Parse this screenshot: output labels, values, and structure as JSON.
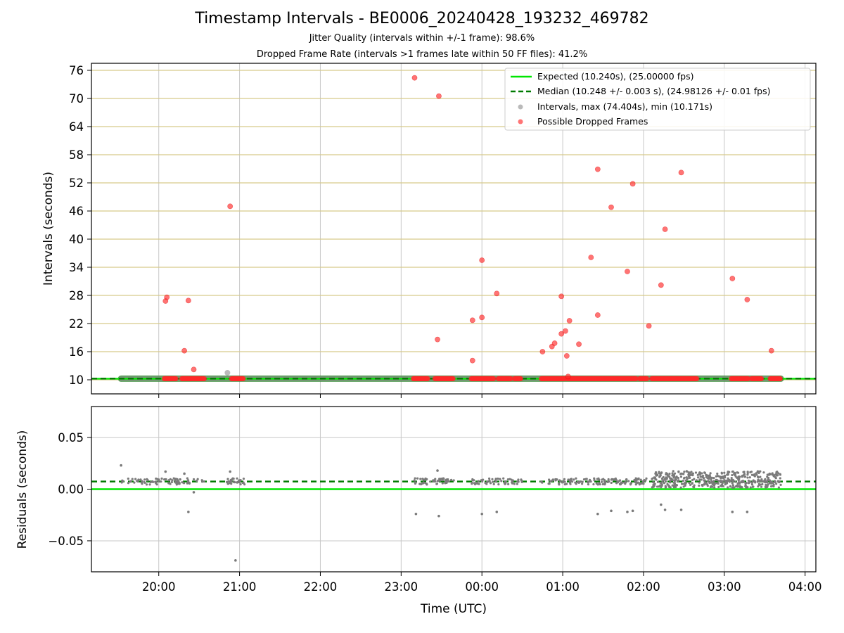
{
  "title": "Timestamp Intervals - BE0006_20240428_193232_469782",
  "subtitle1": "Jitter Quality (intervals within +/-1 frame): 98.6%",
  "subtitle2": "Dropped Frame Rate (intervals >1 frames late within 50 FF files): 41.2%",
  "colors": {
    "expected": "#00e600",
    "median": "#007a00",
    "intervals": "#8c8c8c",
    "dropped": "#ff2a2a",
    "hgrid_top": "#d6c98a",
    "grid": "#c8c8c8"
  },
  "chart_data": [
    {
      "type": "scatter",
      "ylabel": "Intervals (seconds)",
      "xlim": [
        "19:10",
        "04:08"
      ],
      "ylim": [
        7,
        77.5
      ],
      "yticks": [
        10,
        16,
        22,
        28,
        34,
        40,
        46,
        52,
        58,
        64,
        70,
        76
      ],
      "grid": true,
      "legend_position": "upper right",
      "legend": [
        "Expected (10.240s), (25.00000 fps)",
        "Median (10.248 +/- 0.003 s), (24.98126 +/- 0.01 fps)",
        "Intervals, max (74.404s), min (10.171s)",
        "Possible Dropped Frames"
      ],
      "expected_line": 10.24,
      "median_line": 10.248,
      "intervals_segment": {
        "x_start": "19:32",
        "x_end": "03:42",
        "y": 10.24
      },
      "gray_outliers": [
        {
          "x": "20:51",
          "y": 11.5
        }
      ],
      "dropped_runs": [
        {
          "x_start": "20:04",
          "x_end": "20:13"
        },
        {
          "x_start": "20:17",
          "x_end": "20:34"
        },
        {
          "x_start": "20:54",
          "x_end": "21:03"
        },
        {
          "x_start": "23:09",
          "x_end": "23:20"
        },
        {
          "x_start": "23:25",
          "x_end": "23:39"
        },
        {
          "x_start": "23:52",
          "x_end": "00:09"
        },
        {
          "x_start": "00:12",
          "x_end": "00:22"
        },
        {
          "x_start": "00:24",
          "x_end": "00:29"
        },
        {
          "x_start": "00:44",
          "x_end": "01:02"
        },
        {
          "x_start": "01:03",
          "x_end": "01:55"
        },
        {
          "x_start": "01:57",
          "x_end": "02:03"
        },
        {
          "x_start": "02:06",
          "x_end": "02:40"
        },
        {
          "x_start": "03:05",
          "x_end": "03:18"
        },
        {
          "x_start": "03:20",
          "x_end": "03:28"
        },
        {
          "x_start": "03:34",
          "x_end": "03:42"
        }
      ],
      "dropped_points": [
        {
          "x": "20:05",
          "y": 26.8
        },
        {
          "x": "20:06",
          "y": 27.6
        },
        {
          "x": "20:22",
          "y": 26.9
        },
        {
          "x": "20:19",
          "y": 16.2
        },
        {
          "x": "20:26",
          "y": 12.2
        },
        {
          "x": "20:53",
          "y": 47.0
        },
        {
          "x": "23:10",
          "y": 74.4
        },
        {
          "x": "23:28",
          "y": 70.5
        },
        {
          "x": "23:27",
          "y": 18.6
        },
        {
          "x": "23:53",
          "y": 22.7
        },
        {
          "x": "23:53",
          "y": 14.1
        },
        {
          "x": "00:00",
          "y": 23.3
        },
        {
          "x": "00:00",
          "y": 35.5
        },
        {
          "x": "00:11",
          "y": 28.4
        },
        {
          "x": "00:45",
          "y": 16.0
        },
        {
          "x": "00:52",
          "y": 17.1
        },
        {
          "x": "00:54",
          "y": 17.8
        },
        {
          "x": "00:59",
          "y": 19.8
        },
        {
          "x": "00:59",
          "y": 27.8
        },
        {
          "x": "01:02",
          "y": 20.4
        },
        {
          "x": "01:03",
          "y": 15.1
        },
        {
          "x": "01:04",
          "y": 10.7
        },
        {
          "x": "01:05",
          "y": 22.6
        },
        {
          "x": "01:12",
          "y": 17.6
        },
        {
          "x": "01:21",
          "y": 36.1
        },
        {
          "x": "01:26",
          "y": 23.8
        },
        {
          "x": "01:26",
          "y": 54.9
        },
        {
          "x": "01:36",
          "y": 46.8
        },
        {
          "x": "01:48",
          "y": 33.1
        },
        {
          "x": "01:52",
          "y": 51.8
        },
        {
          "x": "02:04",
          "y": 21.5
        },
        {
          "x": "02:13",
          "y": 30.2
        },
        {
          "x": "02:16",
          "y": 42.1
        },
        {
          "x": "02:28",
          "y": 54.2
        },
        {
          "x": "03:06",
          "y": 31.6
        },
        {
          "x": "03:17",
          "y": 27.1
        },
        {
          "x": "03:35",
          "y": 16.2
        }
      ]
    },
    {
      "type": "scatter",
      "xlabel": "Time (UTC)",
      "ylabel": "Residuals (seconds)",
      "xlim": [
        "19:10",
        "04:08"
      ],
      "xticks": [
        "20:00",
        "21:00",
        "22:00",
        "23:00",
        "00:00",
        "01:00",
        "02:00",
        "03:00",
        "04:00"
      ],
      "ylim": [
        -0.08,
        0.08
      ],
      "yticks": [
        0.05,
        0.0,
        -0.05
      ],
      "ytick_labels": [
        "0.05",
        "0.00",
        "−0.05"
      ],
      "expected_line": 0.0,
      "median_line": 0.0074,
      "grid": true,
      "clusters": [
        {
          "x_start": "19:32",
          "x_end": "20:34",
          "y_center": 0.0075,
          "spread": 0.003,
          "count": 80
        },
        {
          "x_start": "20:50",
          "x_end": "21:04",
          "y_center": 0.0075,
          "spread": 0.003,
          "count": 30
        },
        {
          "x_start": "23:09",
          "x_end": "23:40",
          "y_center": 0.0075,
          "spread": 0.003,
          "count": 50
        },
        {
          "x_start": "23:52",
          "x_end": "00:30",
          "y_center": 0.0075,
          "spread": 0.003,
          "count": 55
        },
        {
          "x_start": "00:44",
          "x_end": "02:03",
          "y_center": 0.0075,
          "spread": 0.003,
          "count": 140
        },
        {
          "x_start": "02:06",
          "x_end": "03:42",
          "y_center": 0.0095,
          "spread": 0.008,
          "count": 460
        }
      ],
      "outliers": [
        {
          "x": "19:32",
          "y": 0.023
        },
        {
          "x": "20:05",
          "y": 0.017
        },
        {
          "x": "20:19",
          "y": 0.015
        },
        {
          "x": "20:22",
          "y": -0.022
        },
        {
          "x": "20:26",
          "y": -0.003
        },
        {
          "x": "20:53",
          "y": 0.017
        },
        {
          "x": "20:57",
          "y": -0.069
        },
        {
          "x": "23:11",
          "y": -0.024
        },
        {
          "x": "23:28",
          "y": -0.026
        },
        {
          "x": "23:27",
          "y": 0.018
        },
        {
          "x": "00:00",
          "y": -0.024
        },
        {
          "x": "00:11",
          "y": -0.022
        },
        {
          "x": "01:26",
          "y": -0.024
        },
        {
          "x": "01:36",
          "y": -0.021
        },
        {
          "x": "01:48",
          "y": -0.022
        },
        {
          "x": "01:52",
          "y": -0.021
        },
        {
          "x": "02:13",
          "y": -0.015
        },
        {
          "x": "02:16",
          "y": -0.02
        },
        {
          "x": "02:28",
          "y": -0.02
        },
        {
          "x": "03:06",
          "y": -0.022
        },
        {
          "x": "03:17",
          "y": -0.022
        }
      ]
    }
  ]
}
